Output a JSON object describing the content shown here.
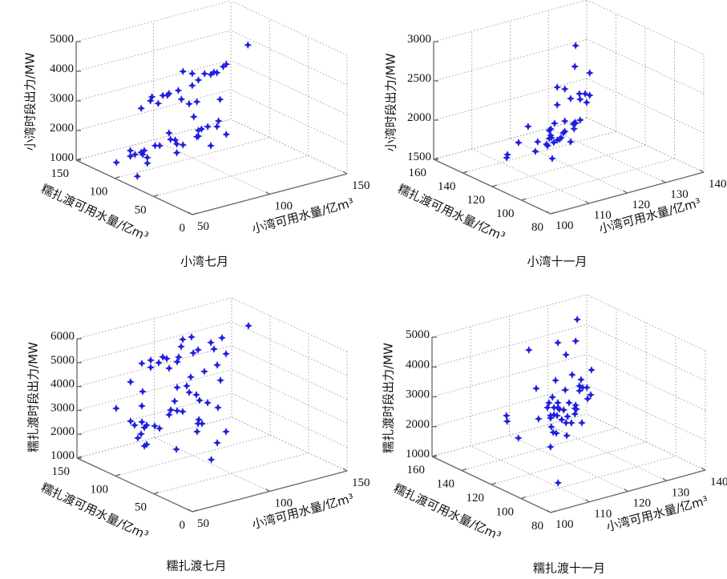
{
  "chart_data": [
    {
      "type": "scatter",
      "title": "小湾七月",
      "xlabel": "小湾可用水量/亿m³",
      "ylabel": "糯扎渡可用水量/亿m³",
      "zlabel": "小湾时段出力/MW",
      "xlim": [
        50,
        150
      ],
      "ylim": [
        0,
        150
      ],
      "zlim": [
        1000,
        5000
      ],
      "xticks": [
        50,
        100,
        150
      ],
      "yticks": [
        0,
        50,
        100,
        150
      ],
      "zticks": [
        1000,
        2000,
        3000,
        4000,
        5000
      ],
      "grid": true,
      "marker_color": "#1f1fe0",
      "points": [
        [
          136,
          100,
          4313
        ],
        [
          122,
          100,
          3857
        ],
        [
          120,
          100,
          3805
        ],
        [
          94,
          100,
          4000
        ],
        [
          100,
          100,
          3846
        ],
        [
          108,
          100,
          3732
        ],
        [
          114,
          100,
          3700
        ],
        [
          116,
          100,
          3654
        ],
        [
          112,
          100,
          3649
        ],
        [
          104,
          100,
          3573
        ],
        [
          100,
          100,
          3441
        ],
        [
          91,
          100,
          3400
        ],
        [
          85,
          100,
          3379
        ],
        [
          81,
          100,
          3368
        ],
        [
          84,
          100,
          3333
        ],
        [
          74,
          100,
          3419
        ],
        [
          73,
          100,
          3300
        ],
        [
          93,
          100,
          3076
        ],
        [
          78,
          100,
          3141
        ],
        [
          98,
          100,
          2850
        ],
        [
          103,
          100,
          2852
        ],
        [
          118,
          100,
          2725
        ],
        [
          67,
          100,
          3128
        ],
        [
          101,
          100,
          2374
        ],
        [
          117,
          100,
          2013
        ],
        [
          110,
          100,
          1915
        ],
        [
          116,
          100,
          1837
        ],
        [
          106,
          100,
          1891
        ],
        [
          104,
          100,
          1872
        ],
        [
          85,
          100,
          2048
        ],
        [
          103,
          100,
          1672
        ],
        [
          104,
          100,
          1678
        ],
        [
          122,
          100,
          1489
        ],
        [
          86,
          100,
          1818
        ],
        [
          89,
          100,
          1756
        ],
        [
          90,
          100,
          1608
        ],
        [
          94,
          100,
          1521
        ],
        [
          112,
          100,
          1246
        ],
        [
          76,
          100,
          1745
        ],
        [
          79,
          100,
          1702
        ],
        [
          90,
          100,
          1311
        ],
        [
          60,
          100,
          1797
        ],
        [
          63,
          100,
          1626
        ],
        [
          60,
          100,
          1608
        ],
        [
          67,
          100,
          1643
        ],
        [
          68,
          100,
          1554
        ],
        [
          69,
          100,
          1675
        ],
        [
          71,
          100,
          1410
        ],
        [
          71,
          100,
          1221
        ],
        [
          51,
          100,
          1521
        ],
        [
          61,
          93,
          1000
        ]
      ]
    },
    {
      "type": "scatter",
      "title": "小湾十一月",
      "xlabel": "小湾可用水量/亿m³",
      "ylabel": "糯扎渡可用水量/亿m³",
      "zlabel": "小湾时段出力/MW",
      "xlim": [
        100,
        140
      ],
      "ylim": [
        80,
        160
      ],
      "zlim": [
        1500,
        3000
      ],
      "xticks": [
        100,
        110,
        120,
        130,
        140
      ],
      "yticks": [
        80,
        100,
        120,
        140,
        160
      ],
      "zticks": [
        1500,
        2000,
        2500,
        3000
      ],
      "grid": true,
      "marker_color": "#1f1fe0",
      "points": [
        [
          121.8,
          120,
          3007
        ],
        [
          121.6,
          120,
          2744
        ],
        [
          125.5,
          120,
          2610
        ],
        [
          117,
          120,
          2540
        ],
        [
          119,
          120,
          2491
        ],
        [
          122.8,
          120,
          2381
        ],
        [
          124.3,
          120,
          2361
        ],
        [
          125.5,
          120,
          2324
        ],
        [
          120.5,
          120,
          2350
        ],
        [
          123,
          120,
          2307
        ],
        [
          124.7,
          120,
          2244
        ],
        [
          117,
          120,
          2316
        ],
        [
          119,
          120,
          2083
        ],
        [
          123,
          120,
          2042
        ],
        [
          121.6,
          120,
          2030
        ],
        [
          121.8,
          120,
          2017
        ],
        [
          121.2,
          120,
          2015
        ],
        [
          116.3,
          120,
          2090
        ],
        [
          109.4,
          120,
          2141
        ],
        [
          115.3,
          120,
          2031
        ],
        [
          114.9,
          120,
          2017
        ],
        [
          121.4,
          120,
          1952
        ],
        [
          118.6,
          120,
          1937
        ],
        [
          119,
          120,
          1951
        ],
        [
          115.3,
          120,
          1950
        ],
        [
          115.5,
          120,
          1917
        ],
        [
          114.9,
          120,
          1915
        ],
        [
          118,
          120,
          1884
        ],
        [
          117.6,
          120,
          1869
        ],
        [
          117,
          120,
          1867
        ],
        [
          116.1,
          120,
          1848
        ],
        [
          111.9,
          120,
          1913
        ],
        [
          120.5,
          120,
          1799
        ],
        [
          106.9,
          120,
          1969
        ],
        [
          114.2,
          120,
          1852
        ],
        [
          114.5,
          120,
          1828
        ],
        [
          111.3,
          120,
          1799
        ],
        [
          104,
          120,
          1855
        ],
        [
          103.8,
          120,
          1817
        ],
        [
          115.7,
          120,
          1649
        ]
      ]
    },
    {
      "type": "scatter",
      "title": "糯扎渡七月",
      "xlabel": "小湾可用水量/亿m³",
      "ylabel": "糯扎渡可用水量/亿m³",
      "zlabel": "糯扎渡时段出力/MW",
      "xlim": [
        50,
        150
      ],
      "ylim": [
        0,
        150
      ],
      "zlim": [
        1000,
        6000
      ],
      "xticks": [
        50,
        100,
        150
      ],
      "yticks": [
        0,
        50,
        100,
        150
      ],
      "zticks": [
        1000,
        2000,
        3000,
        4000,
        5000,
        6000
      ],
      "grid": true,
      "marker_color": "#1f1fe0",
      "points": [
        [
          136,
          100,
          5822
        ],
        [
          99.2,
          100,
          5980
        ],
        [
          93.5,
          100,
          5976
        ],
        [
          118.9,
          100,
          5610
        ],
        [
          111.7,
          100,
          5533
        ],
        [
          92.5,
          100,
          5694
        ],
        [
          113.7,
          100,
          5227
        ],
        [
          103.4,
          100,
          5371
        ],
        [
          100.3,
          100,
          5291
        ],
        [
          121.5,
          100,
          4894
        ],
        [
          80.6,
          100,
          5459
        ],
        [
          83.2,
          100,
          5348
        ],
        [
          90.9,
          100,
          5281
        ],
        [
          72.8,
          100,
          5459
        ],
        [
          78,
          100,
          5267
        ],
        [
          89.9,
          100,
          5099
        ],
        [
          67.1,
          100,
          5422
        ],
        [
          72.8,
          100,
          5156
        ],
        [
          84.7,
          100,
          4918
        ],
        [
          115.8,
          100,
          4521
        ],
        [
          107.5,
          100,
          4394
        ],
        [
          98.7,
          100,
          4310
        ],
        [
          117.9,
          100,
          3846
        ],
        [
          59.8,
          100,
          4773
        ],
        [
          89.9,
          100,
          4024
        ],
        [
          96.1,
          100,
          3984
        ],
        [
          67.6,
          100,
          4236
        ],
        [
          97.7,
          100,
          3688
        ],
        [
          102.3,
          100,
          3507
        ],
        [
          104.4,
          100,
          3238
        ],
        [
          109.6,
          100,
          3046
        ],
        [
          88.3,
          100,
          3480
        ],
        [
          50.5,
          100,
          3822
        ],
        [
          67.1,
          100,
          3641
        ],
        [
          85.8,
          100,
          3154
        ],
        [
          89.9,
          100,
          3050
        ],
        [
          93.5,
          100,
          2952
        ],
        [
          116.3,
          100,
          2730
        ],
        [
          84.7,
          100,
          2969
        ],
        [
          59.8,
          100,
          3127
        ],
        [
          62.4,
          100,
          2915
        ],
        [
          67.1,
          100,
          2969
        ],
        [
          70.2,
          100,
          2781
        ],
        [
          68.7,
          100,
          2707
        ],
        [
          75.4,
          100,
          2660
        ],
        [
          78.5,
          100,
          2505
        ],
        [
          103.9,
          100,
          2438
        ],
        [
          103.4,
          100,
          2280
        ],
        [
          106,
          100,
          2236
        ],
        [
          102.8,
          100,
          1954
        ],
        [
          121.5,
          100,
          1635
        ],
        [
          66.6,
          100,
          2475
        ],
        [
          64.5,
          100,
          2341
        ],
        [
          68.7,
          100,
          1934
        ],
        [
          70.2,
          100,
          1974
        ],
        [
          115.8,
          100,
          1262
        ],
        [
          89.4,
          100,
          1444
        ],
        [
          104,
          84,
          1000
        ]
      ]
    },
    {
      "type": "scatter",
      "title": "糯扎渡十一月",
      "xlabel": "小湾可用水量/亿m³",
      "ylabel": "糯扎渡可用水量/亿m³",
      "zlabel": "糯扎渡时段出力/MW",
      "xlim": [
        100,
        140
      ],
      "ylim": [
        80,
        160
      ],
      "zlim": [
        1000,
        5000
      ],
      "xticks": [
        100,
        110,
        120,
        130,
        140
      ],
      "yticks": [
        80,
        100,
        120,
        140,
        160
      ],
      "zticks": [
        1000,
        2000,
        3000,
        4000,
        5000
      ],
      "grid": true,
      "marker_color": "#1f1fe0",
      "points": [
        [
          122.2,
          120,
          5742
        ],
        [
          117.2,
          120,
          5140
        ],
        [
          121.8,
          120,
          5033
        ],
        [
          109.7,
          120,
          5164
        ],
        [
          119.3,
          120,
          4665
        ],
        [
          125.9,
          120,
          3919
        ],
        [
          120.9,
          120,
          3935
        ],
        [
          116.6,
          120,
          3900
        ],
        [
          123.2,
          120,
          3690
        ],
        [
          111.6,
          120,
          3808
        ],
        [
          122.8,
          120,
          3492
        ],
        [
          123.6,
          120,
          3408
        ],
        [
          124.7,
          120,
          3371
        ],
        [
          122.8,
          120,
          3331
        ],
        [
          119.1,
          120,
          3489
        ],
        [
          125.7,
          120,
          3092
        ],
        [
          124.9,
          120,
          2987
        ],
        [
          115.8,
          120,
          3365
        ],
        [
          114.9,
          120,
          3207
        ],
        [
          117.2,
          120,
          3127
        ],
        [
          120.1,
          120,
          3024
        ],
        [
          121.8,
          120,
          2885
        ],
        [
          114.5,
          120,
          3062
        ],
        [
          116.2,
          120,
          3003
        ],
        [
          117.2,
          120,
          2965
        ],
        [
          117.6,
          120,
          2898
        ],
        [
          118.7,
          120,
          2834
        ],
        [
          121.6,
          120,
          2783
        ],
        [
          122,
          120,
          2743
        ],
        [
          121.6,
          120,
          2595
        ],
        [
          115.3,
          120,
          2764
        ],
        [
          116.2,
          120,
          2761
        ],
        [
          117,
          120,
          2705
        ],
        [
          119.7,
          120,
          2581
        ],
        [
          115.3,
          120,
          2683
        ],
        [
          103.9,
          120,
          3169
        ],
        [
          104.1,
          120,
          2973
        ],
        [
          112.2,
          120,
          2767
        ],
        [
          118.2,
          120,
          2525
        ],
        [
          119.3,
          120,
          2383
        ],
        [
          120.7,
          120,
          2329
        ],
        [
          123.4,
          120,
          2235
        ],
        [
          115.5,
          120,
          2380
        ],
        [
          116,
          120,
          2179
        ],
        [
          116.8,
          120,
          2122
        ],
        [
          119.5,
          120,
          1945
        ],
        [
          107,
          120,
          2308
        ],
        [
          115.3,
          120,
          1717
        ],
        [
          111.5,
          105,
          1000
        ]
      ]
    }
  ]
}
